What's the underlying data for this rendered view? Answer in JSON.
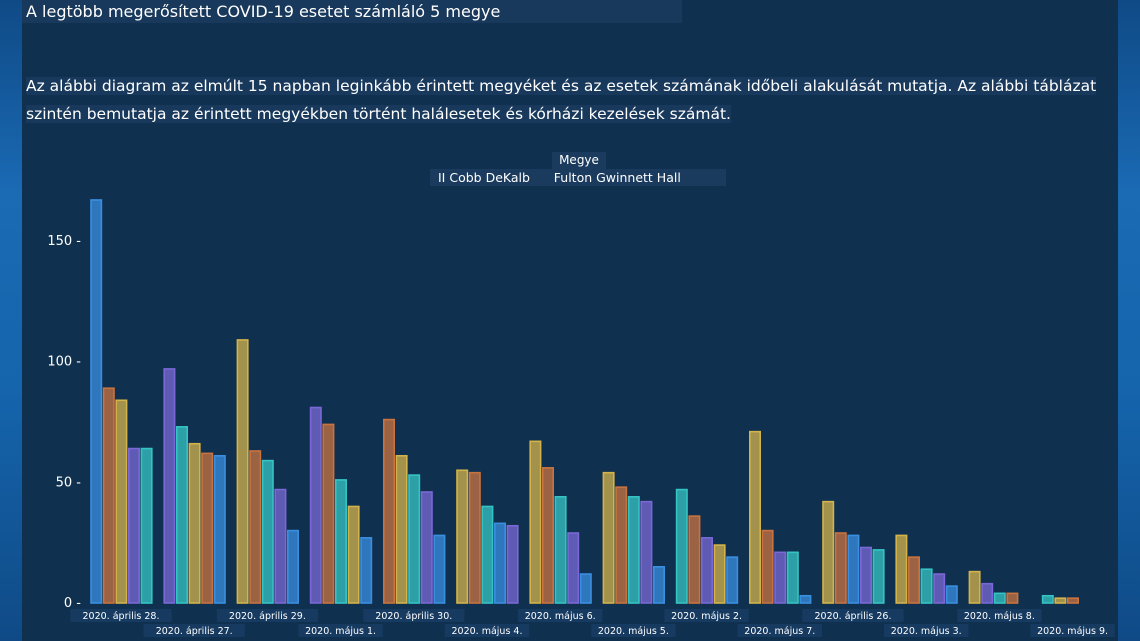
{
  "page": {
    "title": "A legtöbb megerősített COVID-19 esetet számláló 5 megye",
    "description": "Az alábbi diagram az elmúlt 15 napban leginkább érintett megyéket és az esetek számának időbeli alakulását mutatja. Az alábbi táblázat szintén bemutatja az érintett megyékben történt halálesetek és kórházi kezelések számát."
  },
  "legend": {
    "title": "Megye",
    "items_text": "II Cobb DeKalb      Fulton Gwinnett Hall"
  },
  "colors": {
    "background": "#10304f",
    "bar_colors": [
      "#3a8fe0",
      "#d4b34a",
      "#c9733f",
      "#7a68d6",
      "#35c4c4"
    ]
  },
  "chart_data": {
    "type": "bar",
    "legend_title": "Megye",
    "ylim": [
      0,
      170
    ],
    "yticks": [
      0,
      50,
      100,
      150
    ],
    "categories": [
      "2020. április 28.",
      "2020. április 27.",
      "2020. április 29.",
      "2020. május 1.",
      "2020. április 30.",
      "2020. május 4.",
      "2020. május 6.",
      "2020. május 5.",
      "2020. május 2.",
      "2020. május 7.",
      "2020. április 26.",
      "2020. május 3.",
      "2020. május 8.",
      "2020. május 9."
    ],
    "groups": [
      [
        {
          "c": "#3a8fe0",
          "v": 167
        },
        {
          "c": "#c9733f",
          "v": 89
        },
        {
          "c": "#d4b34a",
          "v": 84
        },
        {
          "c": "#7a68d6",
          "v": 64
        },
        {
          "c": "#35c4c4",
          "v": 64
        }
      ],
      [
        {
          "c": "#7a68d6",
          "v": 97
        },
        {
          "c": "#35c4c4",
          "v": 73
        },
        {
          "c": "#d4b34a",
          "v": 66
        },
        {
          "c": "#c9733f",
          "v": 62
        },
        {
          "c": "#3a8fe0",
          "v": 61
        }
      ],
      [
        {
          "c": "#d4b34a",
          "v": 109
        },
        {
          "c": "#c9733f",
          "v": 63
        },
        {
          "c": "#35c4c4",
          "v": 59
        },
        {
          "c": "#7a68d6",
          "v": 47
        },
        {
          "c": "#3a8fe0",
          "v": 30
        }
      ],
      [
        {
          "c": "#7a68d6",
          "v": 81
        },
        {
          "c": "#c9733f",
          "v": 74
        },
        {
          "c": "#35c4c4",
          "v": 51
        },
        {
          "c": "#d4b34a",
          "v": 40
        },
        {
          "c": "#3a8fe0",
          "v": 27
        }
      ],
      [
        {
          "c": "#c9733f",
          "v": 76
        },
        {
          "c": "#d4b34a",
          "v": 61
        },
        {
          "c": "#35c4c4",
          "v": 53
        },
        {
          "c": "#7a68d6",
          "v": 46
        },
        {
          "c": "#3a8fe0",
          "v": 28
        }
      ],
      [
        {
          "c": "#d4b34a",
          "v": 55
        },
        {
          "c": "#c9733f",
          "v": 54
        },
        {
          "c": "#35c4c4",
          "v": 40
        },
        {
          "c": "#3a8fe0",
          "v": 33
        },
        {
          "c": "#7a68d6",
          "v": 32
        }
      ],
      [
        {
          "c": "#d4b34a",
          "v": 67
        },
        {
          "c": "#c9733f",
          "v": 56
        },
        {
          "c": "#35c4c4",
          "v": 44
        },
        {
          "c": "#7a68d6",
          "v": 29
        },
        {
          "c": "#3a8fe0",
          "v": 12
        }
      ],
      [
        {
          "c": "#d4b34a",
          "v": 54
        },
        {
          "c": "#c9733f",
          "v": 48
        },
        {
          "c": "#35c4c4",
          "v": 44
        },
        {
          "c": "#7a68d6",
          "v": 42
        },
        {
          "c": "#3a8fe0",
          "v": 15
        }
      ],
      [
        {
          "c": "#35c4c4",
          "v": 47
        },
        {
          "c": "#c9733f",
          "v": 36
        },
        {
          "c": "#7a68d6",
          "v": 27
        },
        {
          "c": "#d4b34a",
          "v": 24
        },
        {
          "c": "#3a8fe0",
          "v": 19
        }
      ],
      [
        {
          "c": "#d4b34a",
          "v": 71
        },
        {
          "c": "#c9733f",
          "v": 30
        },
        {
          "c": "#7a68d6",
          "v": 21
        },
        {
          "c": "#35c4c4",
          "v": 21
        },
        {
          "c": "#3a8fe0",
          "v": 3
        }
      ],
      [
        {
          "c": "#d4b34a",
          "v": 42
        },
        {
          "c": "#c9733f",
          "v": 29
        },
        {
          "c": "#3a8fe0",
          "v": 28
        },
        {
          "c": "#7a68d6",
          "v": 23
        },
        {
          "c": "#35c4c4",
          "v": 22
        }
      ],
      [
        {
          "c": "#d4b34a",
          "v": 28
        },
        {
          "c": "#c9733f",
          "v": 19
        },
        {
          "c": "#35c4c4",
          "v": 14
        },
        {
          "c": "#7a68d6",
          "v": 12
        },
        {
          "c": "#3a8fe0",
          "v": 7
        }
      ],
      [
        {
          "c": "#d4b34a",
          "v": 13
        },
        {
          "c": "#7a68d6",
          "v": 8
        },
        {
          "c": "#35c4c4",
          "v": 4
        },
        {
          "c": "#c9733f",
          "v": 4
        }
      ],
      [
        {
          "c": "#35c4c4",
          "v": 3
        },
        {
          "c": "#d4b34a",
          "v": 2
        },
        {
          "c": "#c9733f",
          "v": 2
        }
      ]
    ]
  }
}
